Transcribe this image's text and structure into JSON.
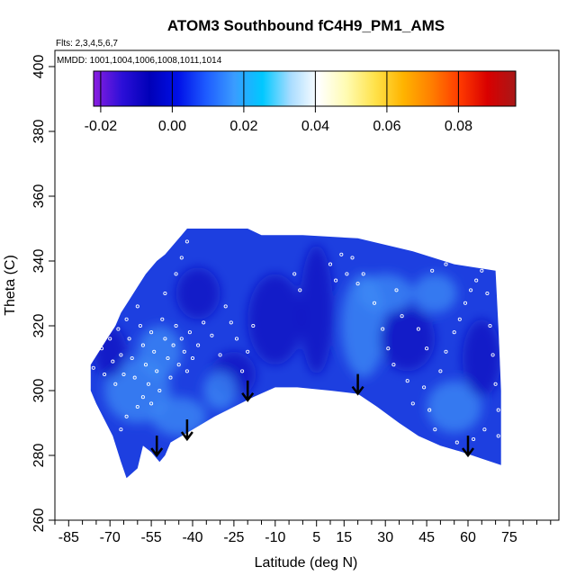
{
  "chart_data": {
    "type": "heatmap",
    "title": "ATOM3 Southbound fC4H9_PM1_AMS",
    "flights_label": "Flts: 2,3,4,5,6,7",
    "dates_label": "MMDD: 1001,1004,1006,1008,1011,1014",
    "xlabel": "Latitude (deg N)",
    "ylabel": "Theta (C)",
    "xlim": [
      -90,
      93
    ],
    "ylim": [
      260,
      405
    ],
    "x_ticks": [
      -85,
      -70,
      -55,
      -40,
      -25,
      -10,
      5,
      15,
      30,
      45,
      60,
      75
    ],
    "x_tick_labels": [
      "-85",
      "-70",
      "-55",
      "-40",
      "-25",
      "-10",
      "5",
      "15",
      "30",
      "45",
      "60",
      "75"
    ],
    "x_minor_step": 5,
    "y_ticks": [
      260,
      280,
      300,
      320,
      340,
      360,
      380,
      400
    ],
    "y_tick_labels": [
      "260",
      "280",
      "300",
      "320",
      "340",
      "360",
      "380",
      "400"
    ],
    "colorbar": {
      "range": [
        -0.022,
        0.096
      ],
      "ticks": [
        -0.02,
        0.0,
        0.02,
        0.04,
        0.06,
        0.08
      ],
      "tick_labels": [
        "-0.02",
        "0.00",
        "0.02",
        "0.04",
        "0.06",
        "0.08"
      ],
      "colors": [
        "#8a1ee0",
        "#2c0fd8",
        "#0000b8",
        "#0010e8",
        "#1e5cff",
        "#3a9cff",
        "#00c8ff",
        "#a9dcff",
        "#ffffff",
        "#fffbb0",
        "#ffe24a",
        "#ffb400",
        "#ff7f00",
        "#ff3a00",
        "#d90000",
        "#a81818"
      ]
    },
    "field_note_colors": {
      "dominant": "#1d3fe0",
      "dark": "#0c12c0",
      "light": "#3f8cf5",
      "background": "#ffffff"
    },
    "coverage_outline": [
      [
        -77,
        308
      ],
      [
        -74,
        312
      ],
      [
        -71,
        316
      ],
      [
        -68,
        320
      ],
      [
        -66,
        324
      ],
      [
        -63,
        328
      ],
      [
        -60,
        332
      ],
      [
        -57,
        336
      ],
      [
        -53,
        340
      ],
      [
        -50,
        342
      ],
      [
        -47,
        345
      ],
      [
        -44,
        348
      ],
      [
        -42,
        350
      ],
      [
        -20,
        350
      ],
      [
        -15,
        348
      ],
      [
        0,
        348
      ],
      [
        20,
        347
      ],
      [
        40,
        343
      ],
      [
        55,
        339
      ],
      [
        70,
        337
      ],
      [
        71,
        320
      ],
      [
        72,
        300
      ],
      [
        72,
        277
      ],
      [
        65,
        279
      ],
      [
        58,
        281
      ],
      [
        50,
        283
      ],
      [
        42,
        286
      ],
      [
        35,
        290
      ],
      [
        27,
        295
      ],
      [
        20,
        299
      ],
      [
        10,
        300
      ],
      [
        -2,
        301
      ],
      [
        -10,
        301
      ],
      [
        -18,
        298
      ],
      [
        -25,
        295
      ],
      [
        -32,
        292
      ],
      [
        -40,
        288
      ],
      [
        -48,
        284
      ],
      [
        -50,
        280
      ],
      [
        -52,
        278
      ],
      [
        -55,
        281
      ],
      [
        -58,
        283
      ],
      [
        -60,
        276
      ],
      [
        -64,
        273
      ],
      [
        -66,
        278
      ],
      [
        -69,
        286
      ],
      [
        -72,
        291
      ],
      [
        -75,
        296
      ],
      [
        -77,
        300
      ]
    ],
    "tropopause_arrows": [
      [
        -53,
        280
      ],
      [
        -42,
        285
      ],
      [
        -20,
        297
      ],
      [
        20,
        299
      ],
      [
        60,
        280
      ]
    ],
    "sample_points": [
      [
        -76,
        307
      ],
      [
        -73,
        313
      ],
      [
        -72,
        305
      ],
      [
        -70,
        316
      ],
      [
        -69,
        309
      ],
      [
        -68,
        302
      ],
      [
        -67,
        319
      ],
      [
        -66,
        311
      ],
      [
        -65,
        305
      ],
      [
        -64,
        322
      ],
      [
        -63,
        316
      ],
      [
        -62,
        310
      ],
      [
        -61,
        304
      ],
      [
        -60,
        326
      ],
      [
        -59,
        320
      ],
      [
        -58,
        314
      ],
      [
        -57,
        308
      ],
      [
        -56,
        302
      ],
      [
        -55,
        318
      ],
      [
        -54,
        312
      ],
      [
        -53,
        306
      ],
      [
        -52,
        300
      ],
      [
        -51,
        322
      ],
      [
        -50,
        316
      ],
      [
        -49,
        310
      ],
      [
        -48,
        304
      ],
      [
        -47,
        314
      ],
      [
        -46,
        320
      ],
      [
        -45,
        308
      ],
      [
        -44,
        316
      ],
      [
        -43,
        312
      ],
      [
        -42,
        306
      ],
      [
        -41,
        318
      ],
      [
        -40,
        310
      ],
      [
        -58,
        298
      ],
      [
        -55,
        296
      ],
      [
        -60,
        295
      ],
      [
        -64,
        292
      ],
      [
        -66,
        288
      ],
      [
        -50,
        330
      ],
      [
        -46,
        336
      ],
      [
        -44,
        341
      ],
      [
        -42,
        346
      ],
      [
        -28,
        326
      ],
      [
        -26,
        321
      ],
      [
        -24,
        316
      ],
      [
        -22,
        306
      ],
      [
        -20,
        312
      ],
      [
        -18,
        320
      ],
      [
        -33,
        317
      ],
      [
        -36,
        321
      ],
      [
        -38,
        314
      ],
      [
        -30,
        311
      ],
      [
        -3,
        336
      ],
      [
        -1,
        331
      ],
      [
        10,
        339
      ],
      [
        12,
        334
      ],
      [
        14,
        342
      ],
      [
        16,
        336
      ],
      [
        18,
        341
      ],
      [
        20,
        333
      ],
      [
        22,
        336
      ],
      [
        26,
        327
      ],
      [
        29,
        319
      ],
      [
        31,
        313
      ],
      [
        33,
        308
      ],
      [
        38,
        303
      ],
      [
        40,
        296
      ],
      [
        44,
        301
      ],
      [
        46,
        294
      ],
      [
        48,
        288
      ],
      [
        50,
        306
      ],
      [
        52,
        312
      ],
      [
        55,
        318
      ],
      [
        57,
        322
      ],
      [
        59,
        327
      ],
      [
        61,
        331
      ],
      [
        63,
        334
      ],
      [
        65,
        337
      ],
      [
        67,
        330
      ],
      [
        68,
        320
      ],
      [
        69,
        311
      ],
      [
        70,
        302
      ],
      [
        71,
        294
      ],
      [
        71,
        286
      ],
      [
        66,
        288
      ],
      [
        62,
        285
      ],
      [
        56,
        284
      ],
      [
        45,
        313
      ],
      [
        42,
        319
      ],
      [
        36,
        323
      ],
      [
        34,
        331
      ],
      [
        47,
        337
      ],
      [
        52,
        339
      ]
    ]
  }
}
